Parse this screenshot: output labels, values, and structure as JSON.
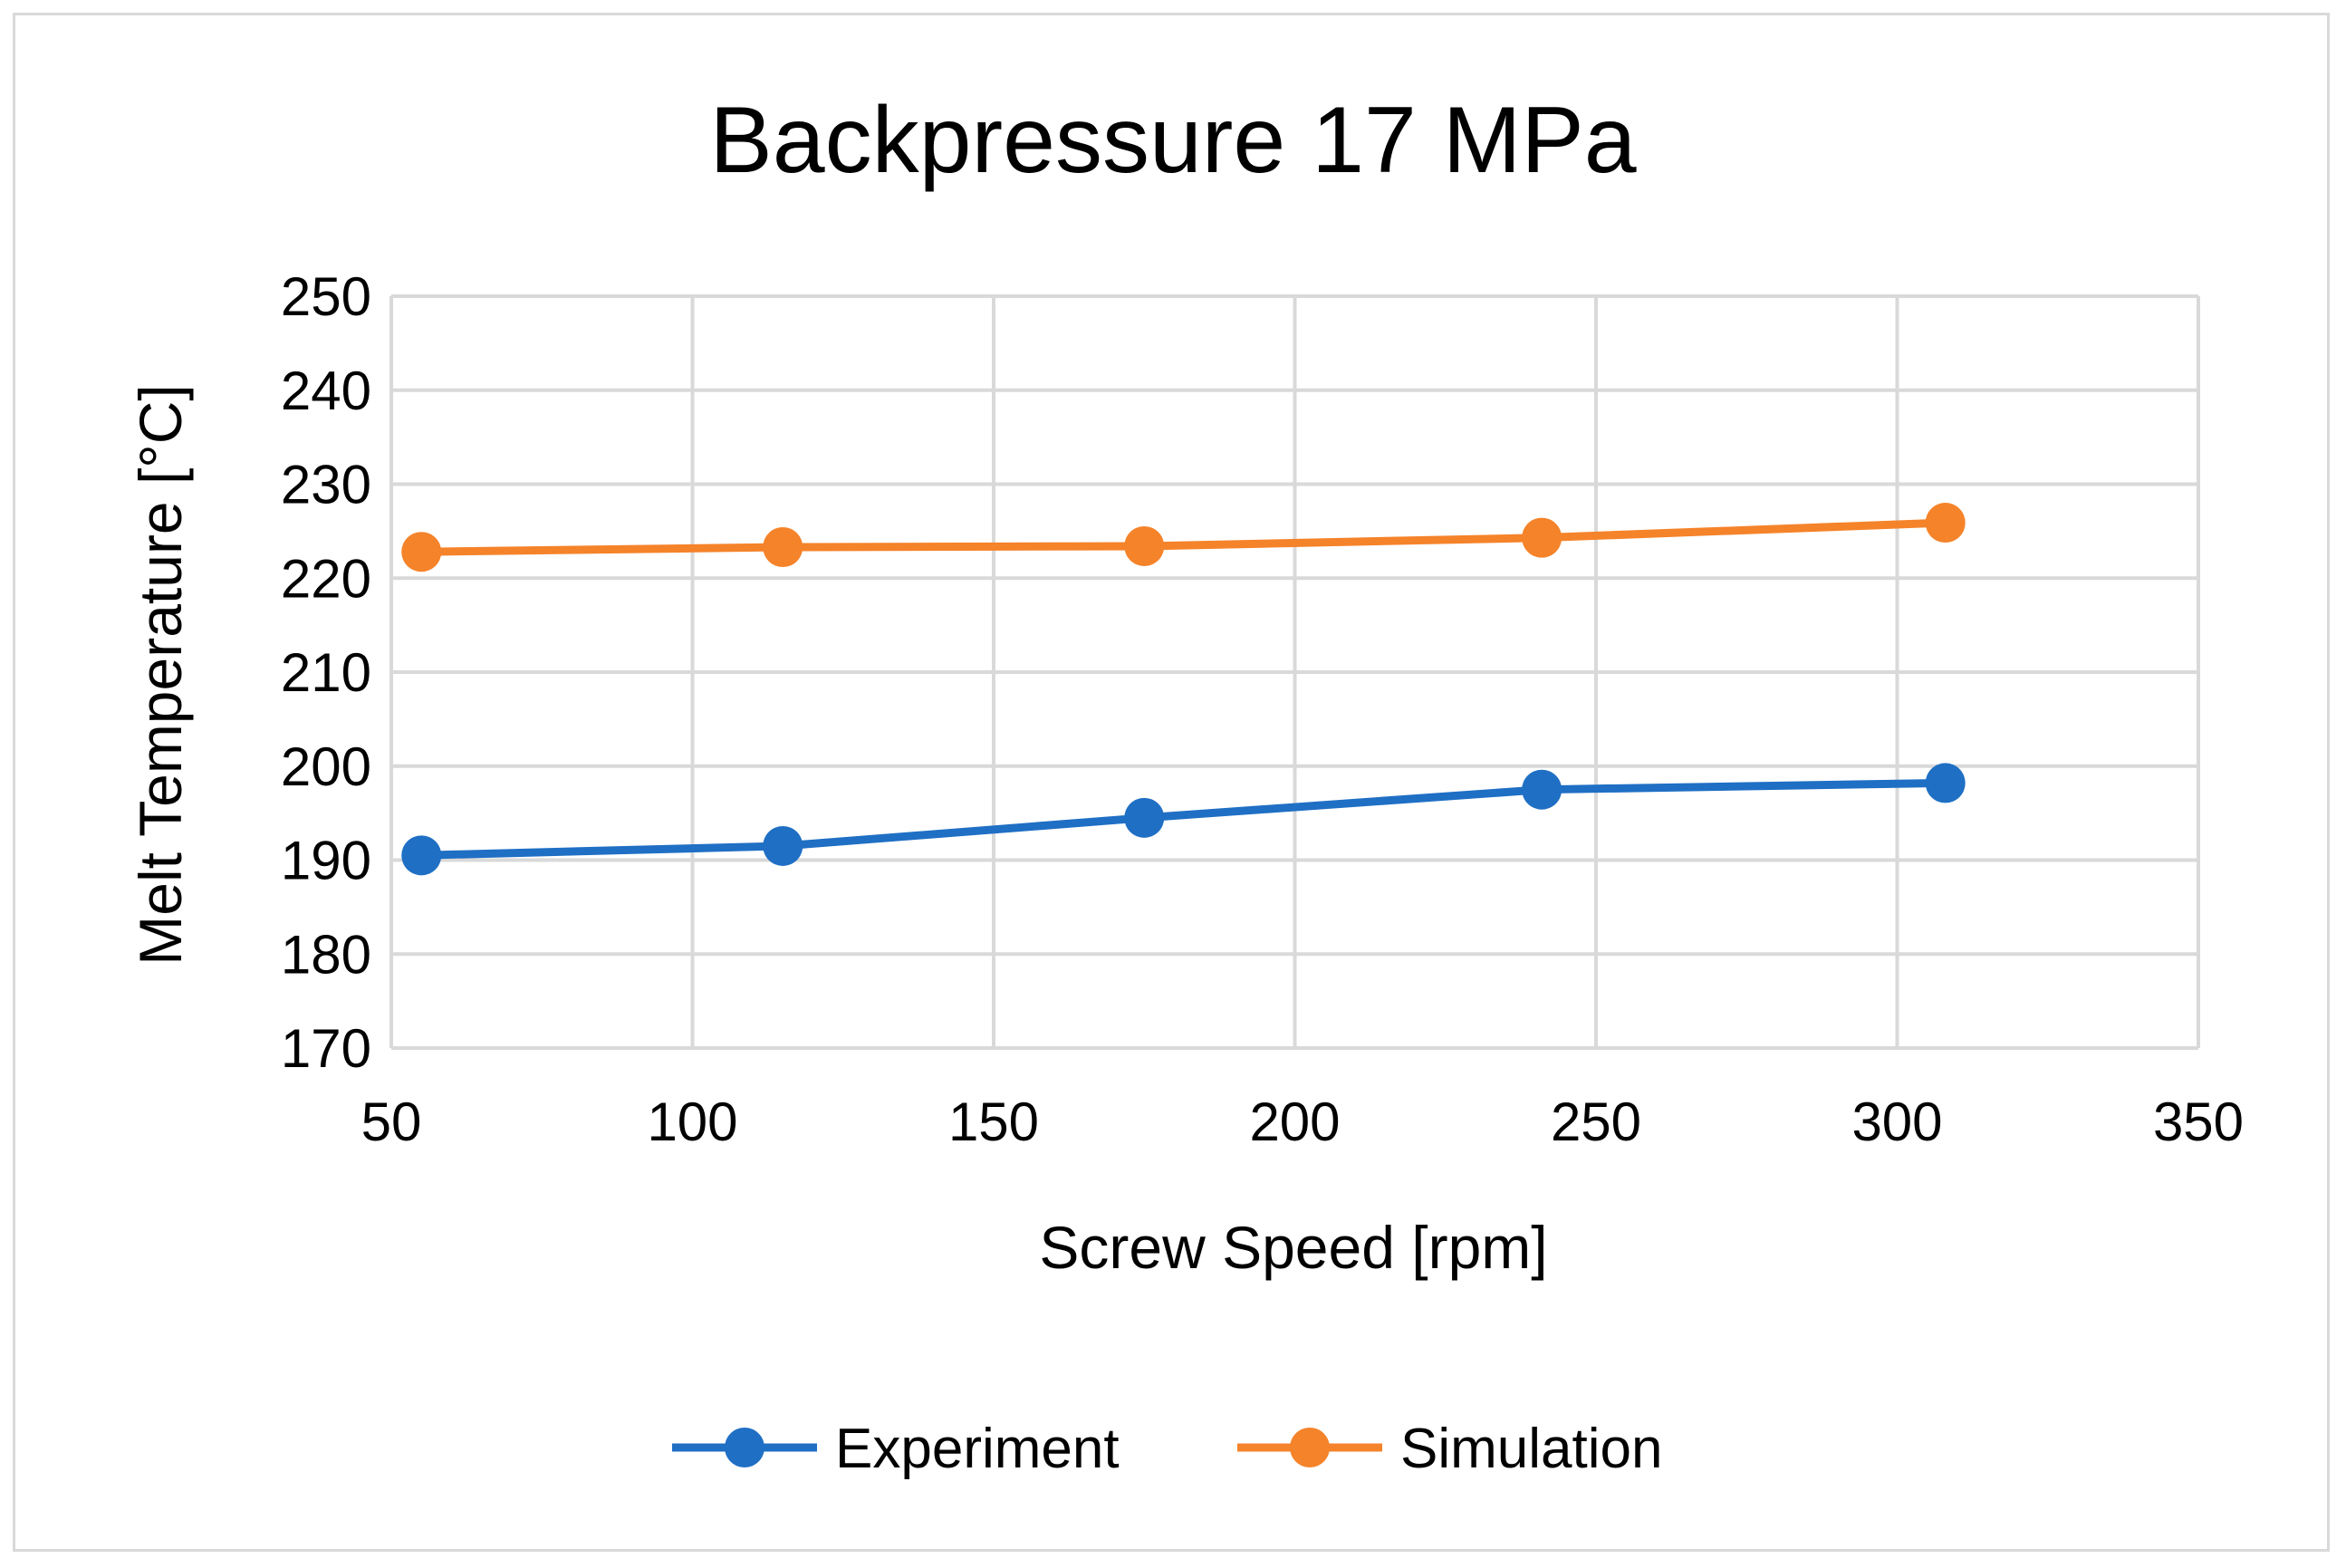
{
  "chart_data": {
    "type": "line",
    "title": "Backpressure 17 MPa",
    "xlabel": "Screw Speed [rpm]",
    "ylabel": "Melt Temperature [°C]",
    "xlim": [
      50,
      350
    ],
    "ylim": [
      170,
      250
    ],
    "xticks": [
      50,
      100,
      150,
      200,
      250,
      300,
      350
    ],
    "yticks": [
      170,
      180,
      190,
      200,
      210,
      220,
      230,
      240,
      250
    ],
    "grid": true,
    "legend": "bottom",
    "series": [
      {
        "name": "Experiment",
        "color": "#1f6fc4",
        "x": [
          55,
          115,
          175,
          241,
          308
        ],
        "y": [
          190.5,
          191.5,
          194.5,
          197.5,
          198.2
        ]
      },
      {
        "name": "Simulation",
        "color": "#f5832a",
        "x": [
          55,
          115,
          175,
          241,
          308
        ],
        "y": [
          222.8,
          223.3,
          223.4,
          224.3,
          225.9
        ]
      }
    ]
  }
}
